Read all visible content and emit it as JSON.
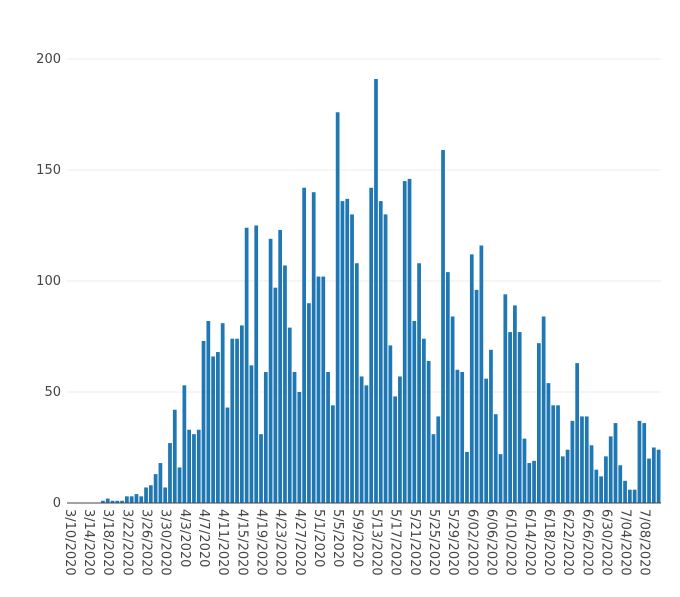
{
  "chart_data": {
    "type": "bar",
    "title": "",
    "xlabel": "",
    "ylabel": "",
    "ylim": [
      0,
      200
    ],
    "yticks": [
      0,
      50,
      100,
      150,
      200
    ],
    "grid": true,
    "color": "#1f77b4",
    "start_date": "2020-03-10",
    "x_tick_labels": [
      "3/10/2020",
      "3/14/2020",
      "3/18/2020",
      "3/22/2020",
      "3/26/2020",
      "3/30/2020",
      "4/3/2020",
      "4/7/2020",
      "4/11/2020",
      "4/15/2020",
      "4/19/2020",
      "4/23/2020",
      "4/27/2020",
      "5/1/2020",
      "5/5/2020",
      "5/9/2020",
      "5/13/2020",
      "5/17/2020",
      "5/21/2020",
      "5/25/2020",
      "5/29/2020",
      "6/02/2020",
      "6/06/2020",
      "6/10/2020",
      "6/14/2020",
      "6/18/2020",
      "6/22/2020",
      "6/26/2020",
      "6/30/2020",
      "7/04/2020",
      "7/08/2020"
    ],
    "values": [
      0,
      0,
      0,
      0,
      0,
      0,
      0,
      1,
      2,
      1,
      1,
      1,
      3,
      3,
      4,
      3,
      7,
      8,
      13,
      18,
      7,
      27,
      42,
      16,
      53,
      33,
      31,
      33,
      73,
      82,
      66,
      68,
      81,
      43,
      74,
      74,
      80,
      124,
      62,
      125,
      31,
      59,
      119,
      97,
      123,
      107,
      79,
      59,
      50,
      142,
      90,
      140,
      102,
      102,
      59,
      44,
      176,
      136,
      137,
      130,
      108,
      57,
      53,
      142,
      191,
      136,
      130,
      71,
      48,
      57,
      145,
      146,
      82,
      108,
      74,
      64,
      31,
      39,
      159,
      104,
      84,
      60,
      59,
      23,
      112,
      96,
      116,
      56,
      69,
      40,
      22,
      94,
      77,
      89,
      77,
      29,
      18,
      19,
      72,
      84,
      54,
      44,
      44,
      21,
      24,
      37,
      63,
      39,
      39,
      26,
      15,
      12,
      21,
      30,
      36,
      17,
      10,
      6,
      6,
      37,
      36,
      20,
      25,
      24
    ]
  }
}
